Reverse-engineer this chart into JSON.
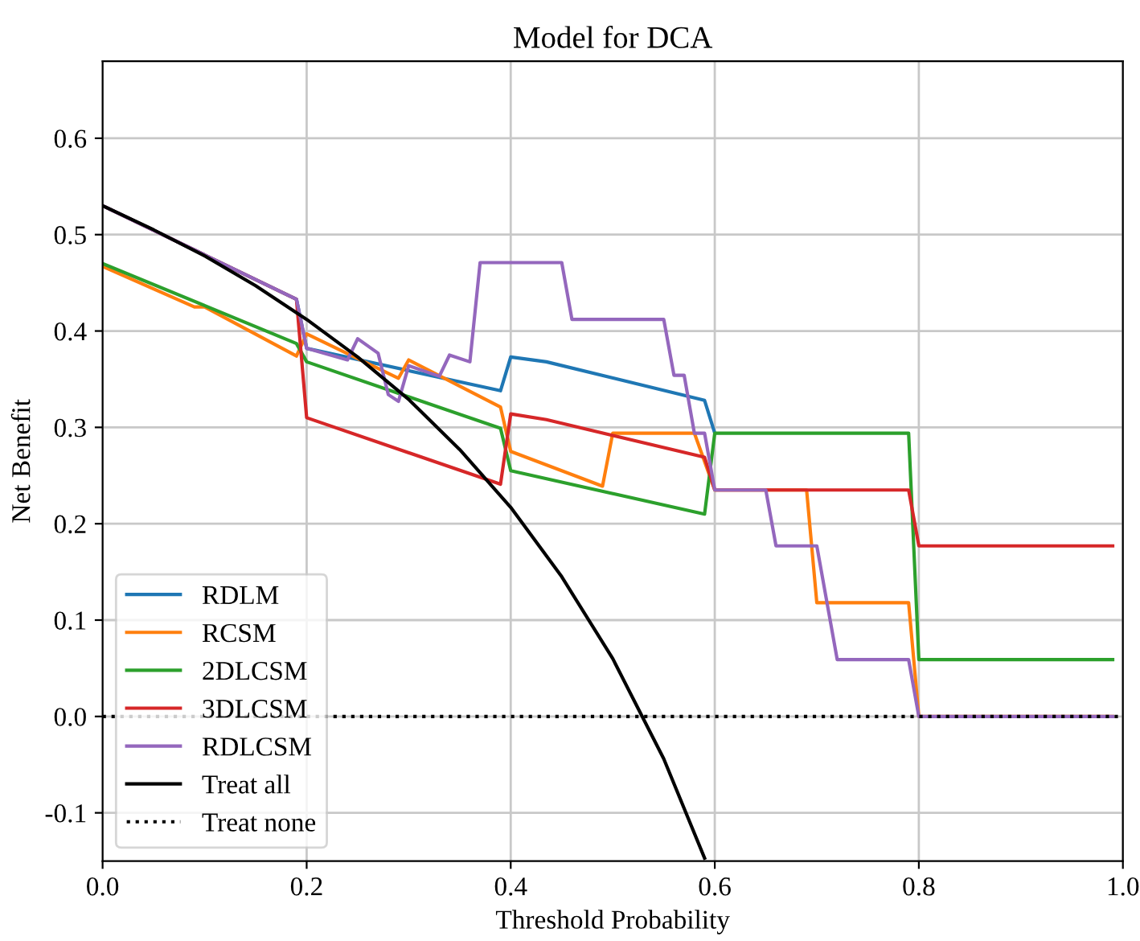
{
  "chart_data": {
    "type": "line",
    "title": "Model for DCA",
    "xlabel": "Threshold Probability",
    "ylabel": "Net Benefit",
    "xlim": [
      0,
      1.0
    ],
    "ylim": [
      -0.15,
      0.68
    ],
    "xticks": [
      {
        "value": 0,
        "label": "0.0"
      },
      0.2,
      0.4,
      0.6,
      0.8,
      {
        "value": 1,
        "label": "1.0"
      }
    ],
    "yticks": [
      {
        "value": -0.1,
        "label": "-0.1"
      },
      {
        "value": 0,
        "label": "0.0"
      },
      0.1,
      0.2,
      0.3,
      0.4,
      0.5,
      0.6
    ],
    "grid": true,
    "legend": "bottom left",
    "marker": "none",
    "series": [
      {
        "name": "RDLM",
        "color": "#1f77b4",
        "line_style": "solid",
        "x": [
          0,
          0.19,
          0.2,
          0.39,
          0.4,
          0.435,
          0.59,
          0.6
        ],
        "values": [
          0.53,
          0.433,
          0.382,
          0.338,
          0.373,
          0.368,
          0.328,
          0.294
        ]
      },
      {
        "name": "RCSM",
        "color": "#ff7f0e",
        "line_style": "solid",
        "x": [
          0,
          0.09,
          0.1,
          0.19,
          0.2,
          0.29,
          0.3,
          0.39,
          0.4,
          0.49,
          0.5,
          0.58,
          0.6,
          0.69,
          0.7,
          0.79,
          0.8,
          0.99
        ],
        "values": [
          0.467,
          0.425,
          0.425,
          0.374,
          0.397,
          0.351,
          0.37,
          0.321,
          0.275,
          0.239,
          0.294,
          0.294,
          0.235,
          0.235,
          0.118,
          0.118,
          0.0,
          0.0
        ]
      },
      {
        "name": "2DLCSM",
        "color": "#2ca02c",
        "line_style": "solid",
        "x": [
          0,
          0.19,
          0.2,
          0.39,
          0.4,
          0.59,
          0.6,
          0.79,
          0.8,
          0.99
        ],
        "values": [
          0.47,
          0.387,
          0.368,
          0.299,
          0.255,
          0.21,
          0.294,
          0.294,
          0.059,
          0.059
        ]
      },
      {
        "name": "3DLCSM",
        "color": "#d62728",
        "line_style": "solid",
        "x": [
          0,
          0.19,
          0.2,
          0.39,
          0.4,
          0.435,
          0.59,
          0.6,
          0.79,
          0.8,
          0.99
        ],
        "values": [
          0.53,
          0.433,
          0.31,
          0.241,
          0.314,
          0.308,
          0.269,
          0.235,
          0.235,
          0.177,
          0.177
        ]
      },
      {
        "name": "RDLCSM",
        "color": "#9467bd",
        "line_style": "solid",
        "x": [
          0,
          0.19,
          0.2,
          0.24,
          0.25,
          0.27,
          0.28,
          0.29,
          0.3,
          0.33,
          0.34,
          0.36,
          0.37,
          0.45,
          0.46,
          0.55,
          0.56,
          0.57,
          0.58,
          0.59,
          0.6,
          0.65,
          0.66,
          0.7,
          0.72,
          0.79,
          0.8,
          0.99
        ],
        "values": [
          0.53,
          0.433,
          0.382,
          0.37,
          0.392,
          0.377,
          0.334,
          0.327,
          0.364,
          0.353,
          0.375,
          0.368,
          0.471,
          0.471,
          0.412,
          0.412,
          0.354,
          0.354,
          0.294,
          0.294,
          0.235,
          0.235,
          0.177,
          0.177,
          0.059,
          0.059,
          0.0,
          0.0
        ]
      },
      {
        "name": "Treat all",
        "color": "#000000",
        "line_style": "solid",
        "x": [
          0,
          0.05,
          0.1,
          0.15,
          0.2,
          0.25,
          0.3,
          0.35,
          0.4,
          0.45,
          0.5,
          0.55,
          0.59
        ],
        "values": [
          0.53,
          0.505,
          0.478,
          0.447,
          0.412,
          0.373,
          0.329,
          0.277,
          0.217,
          0.145,
          0.06,
          -0.044,
          -0.147
        ]
      },
      {
        "name": "Treat none",
        "color": "#000000",
        "line_style": "dotted",
        "x": [
          0,
          1.0
        ],
        "values": [
          0,
          0
        ]
      }
    ]
  }
}
